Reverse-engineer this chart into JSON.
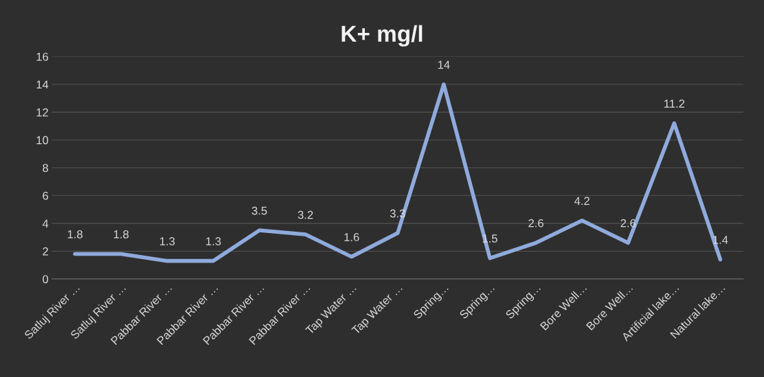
{
  "chart_data": {
    "type": "line",
    "title": "K+ mg/l",
    "categories": [
      "Satluj River …",
      "Satluj River …",
      "Pabbar River …",
      "Pabbar River …",
      "Pabbar River …",
      "Pabbar River …",
      "Tap Water …",
      "Tap Water …",
      "Spring…",
      "Spring…",
      "Spring…",
      "Bore Well…",
      "Bore Well…",
      "Artificial lake…",
      "Natural lake…"
    ],
    "series": [
      {
        "color": "#8faadc",
        "values": [
          1.8,
          1.8,
          1.3,
          1.3,
          3.5,
          3.2,
          1.6,
          3.3,
          14,
          1.5,
          2.6,
          4.2,
          2.6,
          11.2,
          1.4
        ]
      }
    ],
    "ylim": [
      0,
      16
    ],
    "yticks": [
      0,
      2,
      4,
      6,
      8,
      10,
      12,
      14,
      16
    ],
    "grid": "y",
    "legend": false,
    "marker": "none",
    "line_style": "solid",
    "data_labels": true
  }
}
